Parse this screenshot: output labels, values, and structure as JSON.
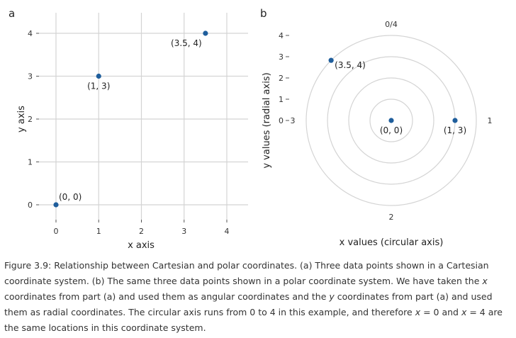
{
  "chart_data": [
    {
      "type": "scatter",
      "panel": "a",
      "coordinate_system": "cartesian",
      "xlabel": "x axis",
      "ylabel": "y axis",
      "xlim": [
        0,
        4
      ],
      "ylim": [
        0,
        4
      ],
      "xticks": [
        0,
        1,
        2,
        3,
        4
      ],
      "yticks": [
        0,
        1,
        2,
        3,
        4
      ],
      "grid": true,
      "points": [
        {
          "x": 0,
          "y": 0,
          "label": "(0, 0)"
        },
        {
          "x": 1,
          "y": 3,
          "label": "(1, 3)"
        },
        {
          "x": 3.5,
          "y": 4,
          "label": "(3.5, 4)"
        }
      ]
    },
    {
      "type": "scatter",
      "panel": "b",
      "coordinate_system": "polar",
      "xlabel": "x values (circular axis)",
      "ylabel": "y values (radial axis)",
      "angular_range": [
        0,
        4
      ],
      "radial_range": [
        0,
        4
      ],
      "angular_tick_labels": [
        "0/4",
        "1",
        "2",
        "3"
      ],
      "radial_ticks": [
        0,
        1,
        2,
        3,
        4
      ],
      "grid": true,
      "points": [
        {
          "x": 0,
          "y": 0,
          "label": "(0, 0)"
        },
        {
          "x": 1,
          "y": 3,
          "label": "(1, 3)"
        },
        {
          "x": 3.5,
          "y": 4,
          "label": "(3.5, 4)"
        }
      ]
    }
  ],
  "colors": {
    "point": "#1f5e9c",
    "grid": "#d4d4d4"
  },
  "caption": [
    {
      "t": "Figure 3.9: Relationship between Cartesian and polar coordinates. (a) Three data points shown in a Cartesian coordinate system. (b) The same three data points shown in a polar coordinate system. We have taken the "
    },
    {
      "t": "x",
      "i": true
    },
    {
      "t": " coordinates from part (a) and used them as angular coordinates and the "
    },
    {
      "t": "y",
      "i": true
    },
    {
      "t": " coordinates from part (a) and used them as radial coordinates. The circular axis runs from 0 to 4 in this example, and therefore "
    },
    {
      "t": "x",
      "i": true
    },
    {
      "t": " = 0 and "
    },
    {
      "t": "x",
      "i": true
    },
    {
      "t": " = 4 are the same locations in this coordinate system."
    }
  ]
}
